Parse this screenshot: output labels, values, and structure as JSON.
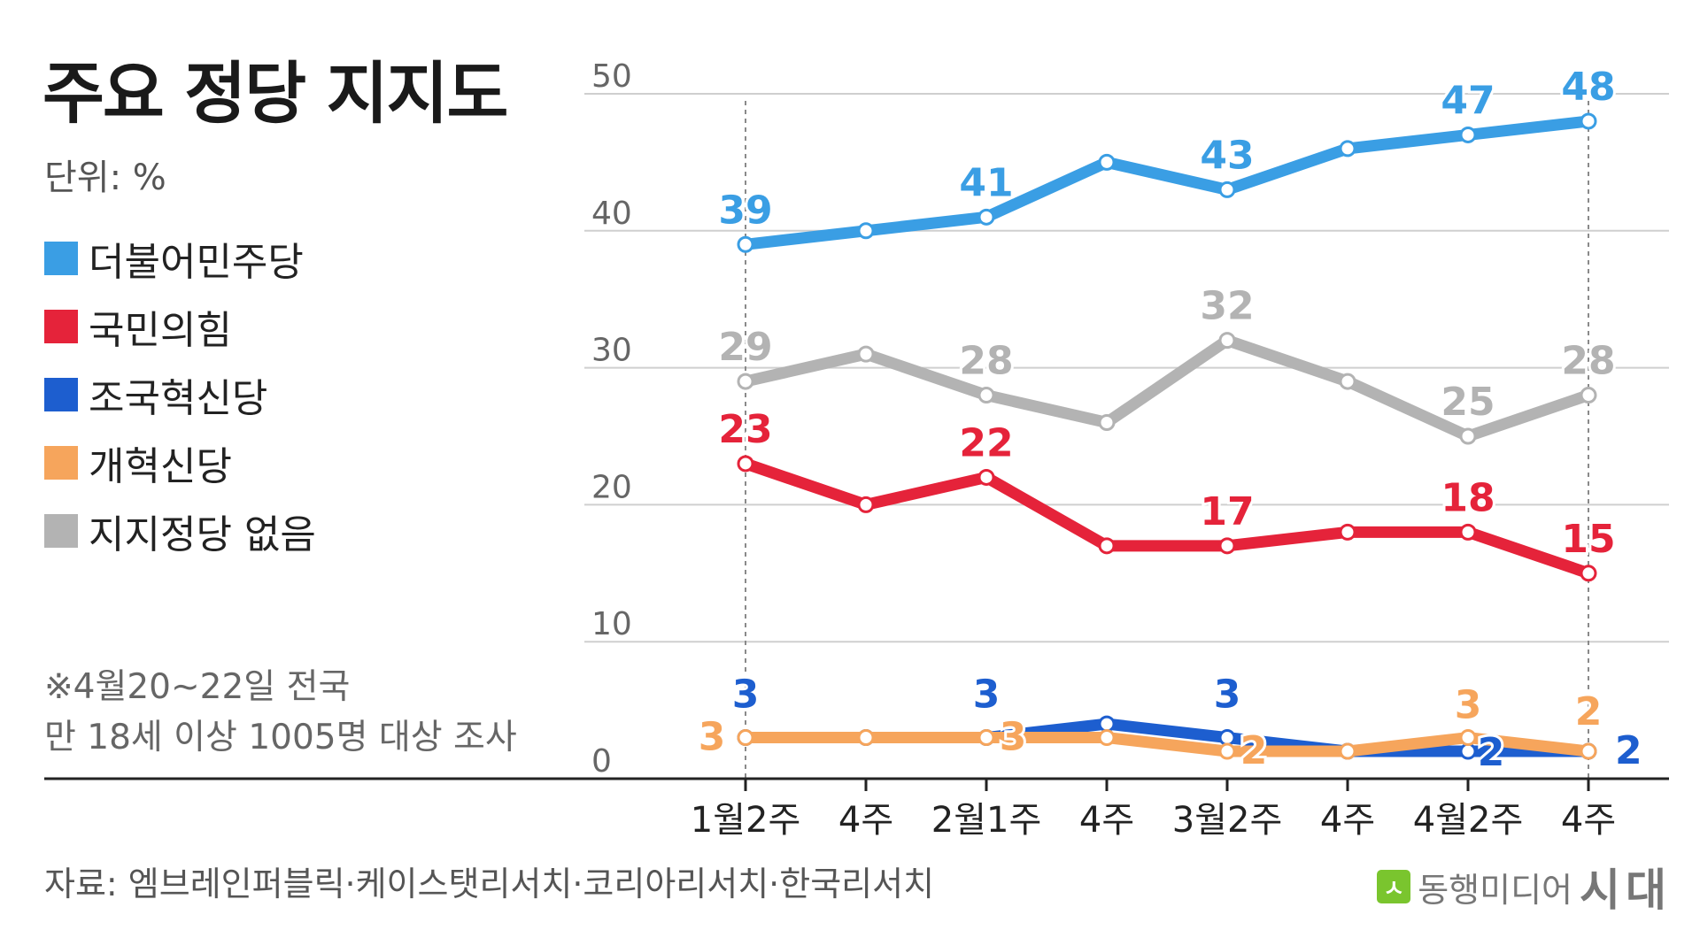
{
  "title": "주요 정당 지지도",
  "unit": "단위: %",
  "note": [
    "※4월20~22일 전국",
    "만 18세 이상 1005명 대상 조사"
  ],
  "source": "자료: 엠브레인퍼블릭·케이스탯리서치·코리아리서치·한국리서치",
  "brand": {
    "icon": "ㅅ",
    "name": "동행미디어",
    "logo": "시대"
  },
  "legend": [
    {
      "label": "더불어민주당",
      "color": "#3a9ee4"
    },
    {
      "label": "국민의힘",
      "color": "#e5233a"
    },
    {
      "label": "조국혁신당",
      "color": "#1d5ecf"
    },
    {
      "label": "개혁신당",
      "color": "#f6a55c"
    },
    {
      "label": "지지정당 없음",
      "color": "#b3b3b3"
    }
  ],
  "chart_data": {
    "type": "line",
    "title": "주요 정당 지지도",
    "xlabel": "",
    "ylabel": "",
    "categories": [
      "1월2주",
      "4주",
      "2월1주",
      "4주",
      "3월2주",
      "4주",
      "4월2주",
      "4주"
    ],
    "yticks": [
      "50",
      "40",
      "30",
      "20",
      "10",
      "0"
    ],
    "ylim": [
      0,
      50
    ],
    "grid": true,
    "legend_position": "left",
    "series": [
      {
        "name": "지지정당 없음",
        "color": "#b3b3b3",
        "values": [
          29,
          31,
          28,
          26,
          32,
          29,
          25,
          28
        ],
        "labels": [
          "29",
          "",
          "28",
          "",
          "32",
          "",
          "25",
          "28"
        ]
      },
      {
        "name": "국민의힘",
        "color": "#e5233a",
        "values": [
          23,
          20,
          22,
          17,
          17,
          18,
          18,
          15
        ],
        "labels": [
          "23",
          "",
          "22",
          "",
          "17",
          "",
          "18",
          "15"
        ]
      },
      {
        "name": "더불어민주당",
        "color": "#3a9ee4",
        "values": [
          39,
          40,
          41,
          45,
          43,
          46,
          47,
          48
        ],
        "labels": [
          "39",
          "",
          "41",
          "",
          "43",
          "",
          "47",
          "48"
        ]
      },
      {
        "name": "조국혁신당",
        "color": "#1d5ecf",
        "values": [
          3,
          3,
          3,
          4,
          3,
          2,
          2,
          2
        ],
        "labels": [
          "3",
          "",
          "3",
          "",
          "3",
          "",
          "2",
          "2"
        ]
      },
      {
        "name": "개혁신당",
        "color": "#f6a55c",
        "values": [
          3,
          3,
          3,
          3,
          2,
          2,
          3,
          2
        ],
        "labels": [
          "3",
          "",
          "3",
          "",
          "2",
          "",
          "3",
          "2"
        ]
      }
    ]
  }
}
